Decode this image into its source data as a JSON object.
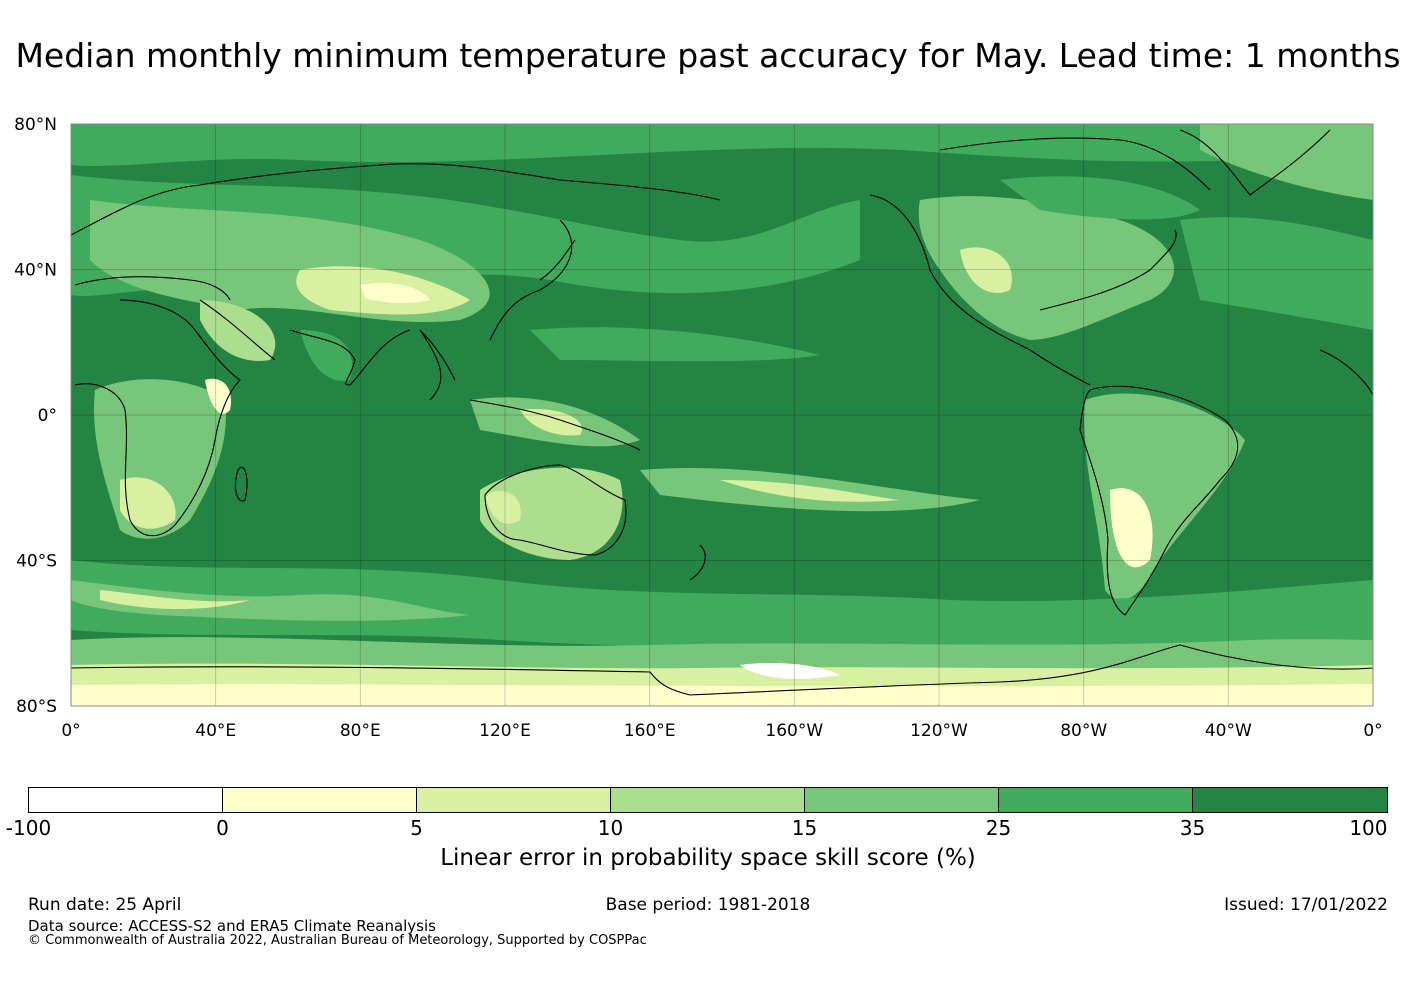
{
  "title": "Median monthly minimum temperature past accuracy for May. Lead time: 1 months",
  "map": {
    "lat_labels": [
      "80°N",
      "40°N",
      "0°",
      "40°S",
      "80°S"
    ],
    "lon_labels": [
      "0°",
      "40°E",
      "80°E",
      "120°E",
      "160°E",
      "160°W",
      "120°W",
      "80°W",
      "40°W",
      "0°"
    ]
  },
  "colorbar": {
    "tick_labels": [
      "-100",
      "0",
      "5",
      "10",
      "15",
      "25",
      "35",
      "100"
    ],
    "colors": [
      "#ffffff",
      "#ffffcc",
      "#d9f0a3",
      "#addd8e",
      "#78c679",
      "#41ab5d",
      "#238443"
    ],
    "label": "Linear error in probability space skill score (%)"
  },
  "footer": {
    "run_date": "Run date: 25 April",
    "base_period": "Base period: 1981-2018",
    "issued": "Issued: 17/01/2022",
    "data_source": "Data source: ACCESS-S2 and ERA5 Climate Reanalysis",
    "copyright": "© Commonwealth of Australia 2022, Australian Bureau of Meteorology, Supported by COSPPac"
  }
}
